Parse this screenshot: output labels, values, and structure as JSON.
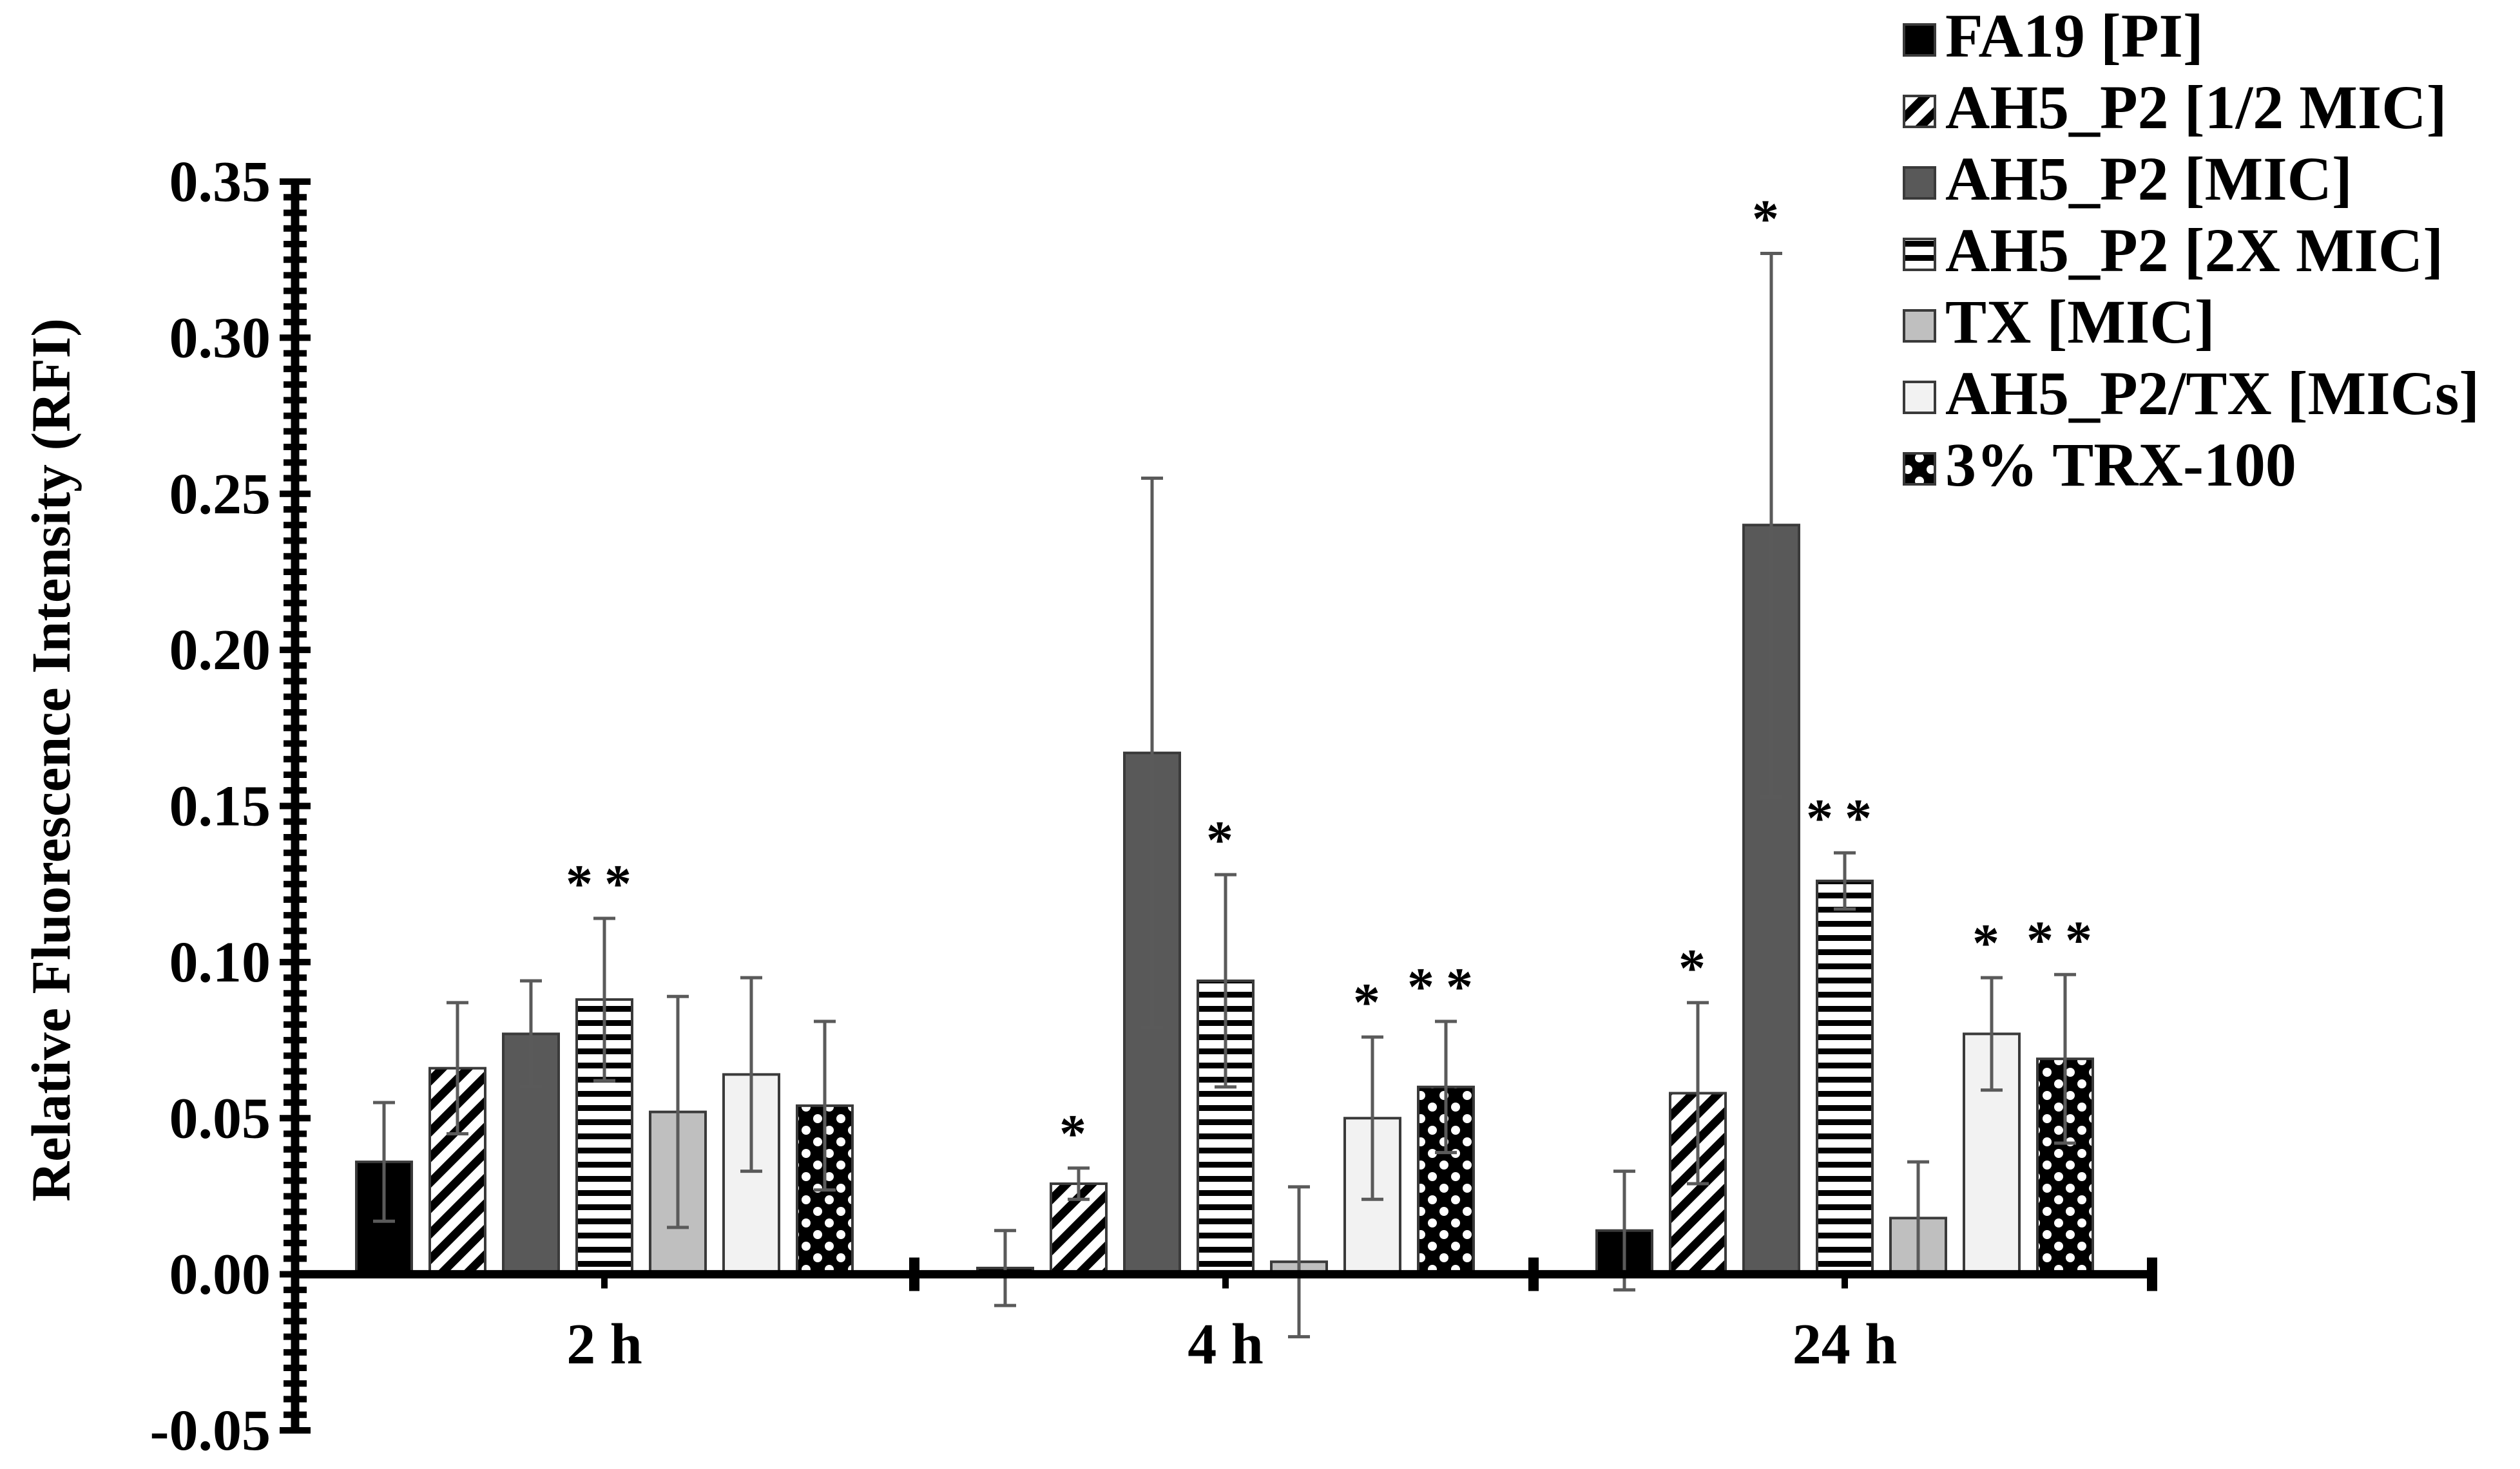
{
  "chart_data": {
    "type": "bar",
    "title": "",
    "xlabel": "",
    "ylabel": "Relative Fluorescence Intensity (RFI)",
    "ylim": [
      -0.05,
      0.35
    ],
    "yticks": [
      "-0.05",
      "0.00",
      "0.05",
      "0.10",
      "0.15",
      "0.20",
      "0.25",
      "0.30",
      "0.35"
    ],
    "yticks_values": [
      -0.05,
      0.0,
      0.05,
      0.1,
      0.15,
      0.2,
      0.25,
      0.3,
      0.35
    ],
    "categories": [
      "2 h",
      "4 h",
      "24 h"
    ],
    "legend_position": "top-right",
    "grid": false,
    "series": [
      {
        "name": "FA19 [PI]",
        "pattern": "solid-black",
        "values": [
          0.036,
          0.002,
          0.014
        ],
        "errors": [
          0.019,
          0.012,
          0.019
        ],
        "significance": [
          "",
          "",
          ""
        ]
      },
      {
        "name": "AH5_P2 [1/2 MIC]",
        "pattern": "diagonal-stripes",
        "values": [
          0.066,
          0.029,
          0.058
        ],
        "errors": [
          0.021,
          0.005,
          0.029
        ],
        "significance": [
          "",
          "*",
          "*"
        ]
      },
      {
        "name": "AH5_P2 [MIC]",
        "pattern": "solid-dark-gray",
        "values": [
          0.077,
          0.167,
          0.24
        ],
        "errors": [
          0.017,
          0.088,
          0.087
        ],
        "significance": [
          "",
          "",
          "*"
        ]
      },
      {
        "name": "AH5_P2 [2X MIC]",
        "pattern": "horizontal-stripes",
        "values": [
          0.088,
          0.094,
          0.126
        ],
        "errors": [
          0.026,
          0.034,
          0.009
        ],
        "significance": [
          "**",
          "*",
          "**"
        ]
      },
      {
        "name": "TX [MIC]",
        "pattern": "solid-light-gray",
        "values": [
          0.052,
          0.004,
          0.018
        ],
        "errors": [
          0.037,
          0.024,
          0.018
        ],
        "significance": [
          "",
          "",
          ""
        ]
      },
      {
        "name": "AH5_P2/TX [MICs]",
        "pattern": "solid-very-light-gray",
        "values": [
          0.064,
          0.05,
          0.077
        ],
        "errors": [
          0.031,
          0.026,
          0.018
        ],
        "significance": [
          "",
          "*",
          "*"
        ]
      },
      {
        "name": "3% TRX-100",
        "pattern": "checker-dots",
        "values": [
          0.054,
          0.06,
          0.069
        ],
        "errors": [
          0.027,
          0.021,
          0.027
        ],
        "significance": [
          "",
          "**",
          "**"
        ]
      }
    ]
  },
  "colors": {
    "axis": "#000000",
    "bar_outline": "#3a3a3a",
    "error_bar": "#5a5a5a",
    "black": "#000000",
    "dark_gray": "#595959",
    "light_gray": "#bfbfbf",
    "very_light_gray": "#f2f2f2",
    "white": "#ffffff"
  }
}
